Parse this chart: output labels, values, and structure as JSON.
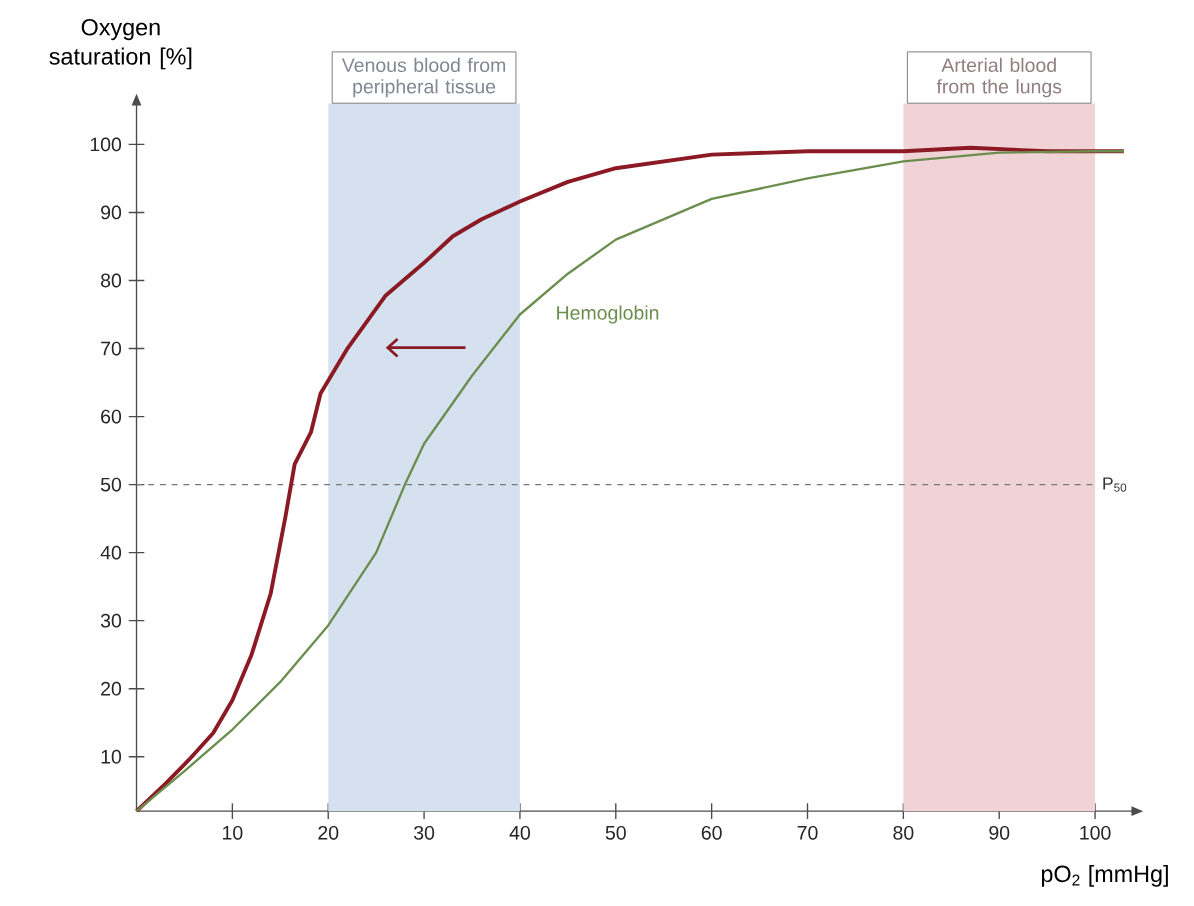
{
  "chart_data": {
    "type": "line",
    "ylabel": "Oxygen saturation [%]",
    "xlabel": "pO$_{2}$ [mmHg]",
    "xlim": [
      0,
      104
    ],
    "ylim": [
      2,
      106
    ],
    "xticks": [
      10,
      20,
      30,
      40,
      50,
      60,
      70,
      80,
      90,
      100
    ],
    "yticks": [
      10,
      20,
      30,
      40,
      50,
      60,
      70,
      80,
      90,
      100
    ],
    "line_style": "solid",
    "series": [
      {
        "color": "#8b1a24",
        "x": [
          0,
          3,
          5.5,
          8,
          10,
          12,
          14,
          15.5,
          16.5,
          18.2,
          19.2,
          22,
          26,
          30,
          33,
          36,
          40,
          45,
          50,
          55,
          60,
          70,
          80,
          87,
          95,
          103
        ],
        "values": [
          2,
          6,
          9.6,
          13.5,
          18.3,
          25,
          34,
          45,
          53,
          57.7,
          63.4,
          70,
          77.8,
          82.6,
          86.5,
          89,
          91.6,
          94.5,
          96.5,
          97.5,
          98.5,
          99,
          99,
          99.5,
          99,
          99
        ]
      },
      {
        "name": "Hemoglobin",
        "color": "#6b8e4e",
        "x": [
          0,
          5,
          10,
          15,
          20,
          25,
          28,
          30,
          35,
          40,
          45,
          50,
          60,
          70,
          80,
          90,
          100,
          103
        ],
        "values": [
          2,
          7.9,
          14,
          21,
          29.3,
          40,
          50,
          56,
          66,
          75,
          81,
          86,
          92,
          95,
          97.5,
          98.8,
          99,
          99
        ]
      }
    ],
    "bands": [
      {
        "axis": "x",
        "from": 20,
        "to": 40,
        "label": "Venous blood from peripheral tissue",
        "color": "#d6e1f0"
      },
      {
        "axis": "x",
        "from": 80,
        "to": 100,
        "label": "Arterial blood from the lungs",
        "color": "#f0d3d7"
      }
    ],
    "ref_lines": [
      {
        "axis": "y",
        "value": 50,
        "label": "P$_{50}$",
        "line_style": "dashed",
        "color": "#777777"
      }
    ]
  }
}
